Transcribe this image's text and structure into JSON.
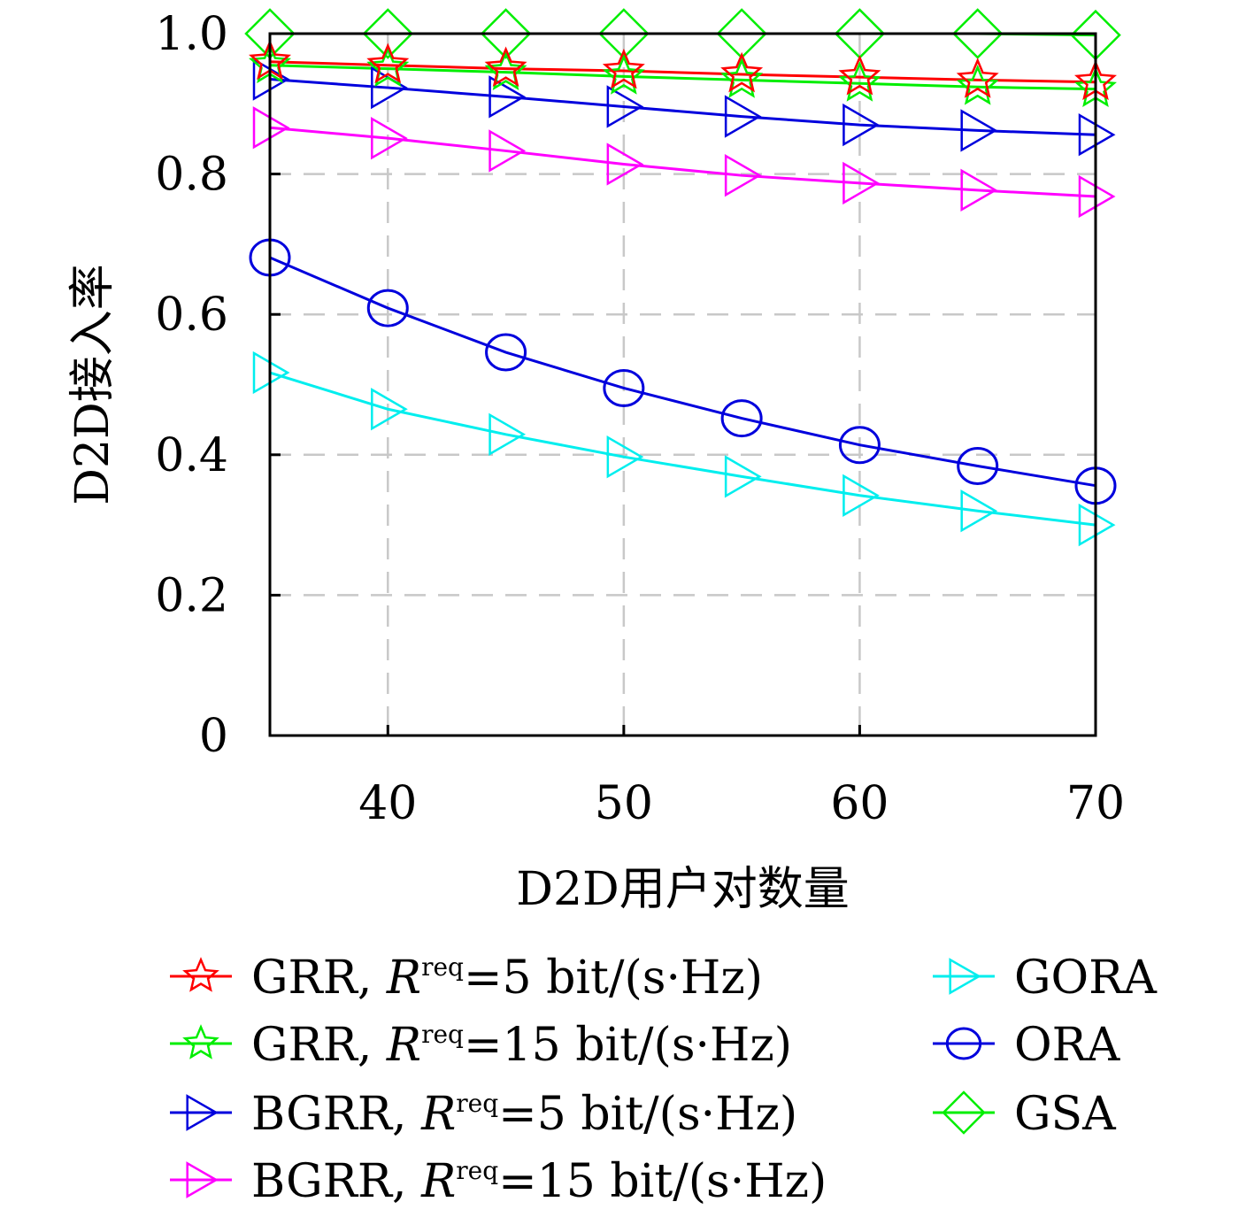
{
  "chart_data": {
    "type": "line",
    "xlabel": "D2D用户对数量",
    "ylabel": "D2D接入率",
    "xlim": [
      35,
      70
    ],
    "ylim": [
      0,
      1.0
    ],
    "x_ticks": [
      40,
      50,
      60,
      70
    ],
    "y_ticks": [
      0,
      0.2,
      0.4,
      0.6,
      0.8,
      1.0
    ],
    "x_tick_labels": [
      "40",
      "50",
      "60",
      "70"
    ],
    "y_tick_labels": [
      "0",
      "0.2",
      "0.4",
      "0.6",
      "0.8",
      "1.0"
    ],
    "grid": true,
    "legend_position": "bottom",
    "x": [
      35,
      40,
      45,
      50,
      55,
      60,
      65,
      70
    ],
    "series": [
      {
        "key": "grr5",
        "name": "GRR,",
        "rate": "=5 bit/(s·Hz)",
        "color": "#ff0000",
        "marker": "star",
        "values": [
          0.96,
          0.955,
          0.95,
          0.947,
          0.942,
          0.938,
          0.934,
          0.931
        ]
      },
      {
        "key": "grr15",
        "name": "GRR,",
        "rate": "=15 bit/(s·Hz)",
        "color": "#00ee00",
        "marker": "star",
        "values": [
          0.955,
          0.95,
          0.945,
          0.939,
          0.934,
          0.929,
          0.924,
          0.921
        ]
      },
      {
        "key": "bgrr5",
        "name": "BGRR,",
        "rate": "=5 bit/(s·Hz)",
        "color": "#0000dd",
        "marker": "triangle-right",
        "values": [
          0.935,
          0.923,
          0.91,
          0.896,
          0.882,
          0.87,
          0.862,
          0.856
        ]
      },
      {
        "key": "bgrr15",
        "name": "BGRR,",
        "rate": "=15 bit/(s·Hz)",
        "color": "#ff00ff",
        "marker": "triangle-right",
        "values": [
          0.866,
          0.851,
          0.833,
          0.814,
          0.798,
          0.787,
          0.777,
          0.768
        ]
      },
      {
        "key": "gora",
        "name": "GORA",
        "color": "#00eeee",
        "marker": "triangle-right",
        "values": [
          0.517,
          0.465,
          0.429,
          0.397,
          0.369,
          0.342,
          0.32,
          0.3
        ]
      },
      {
        "key": "ora",
        "name": "ORA",
        "color": "#0000dd",
        "marker": "circle",
        "values": [
          0.681,
          0.609,
          0.546,
          0.495,
          0.452,
          0.414,
          0.384,
          0.356
        ]
      },
      {
        "key": "gsa",
        "name": "GSA",
        "color": "#00ee00",
        "marker": "diamond",
        "values": [
          1.0,
          1.0,
          1.0,
          1.0,
          1.0,
          1.0,
          1.0,
          0.998
        ]
      }
    ],
    "legend": {
      "symbol_R": "R",
      "sup": "req"
    }
  }
}
